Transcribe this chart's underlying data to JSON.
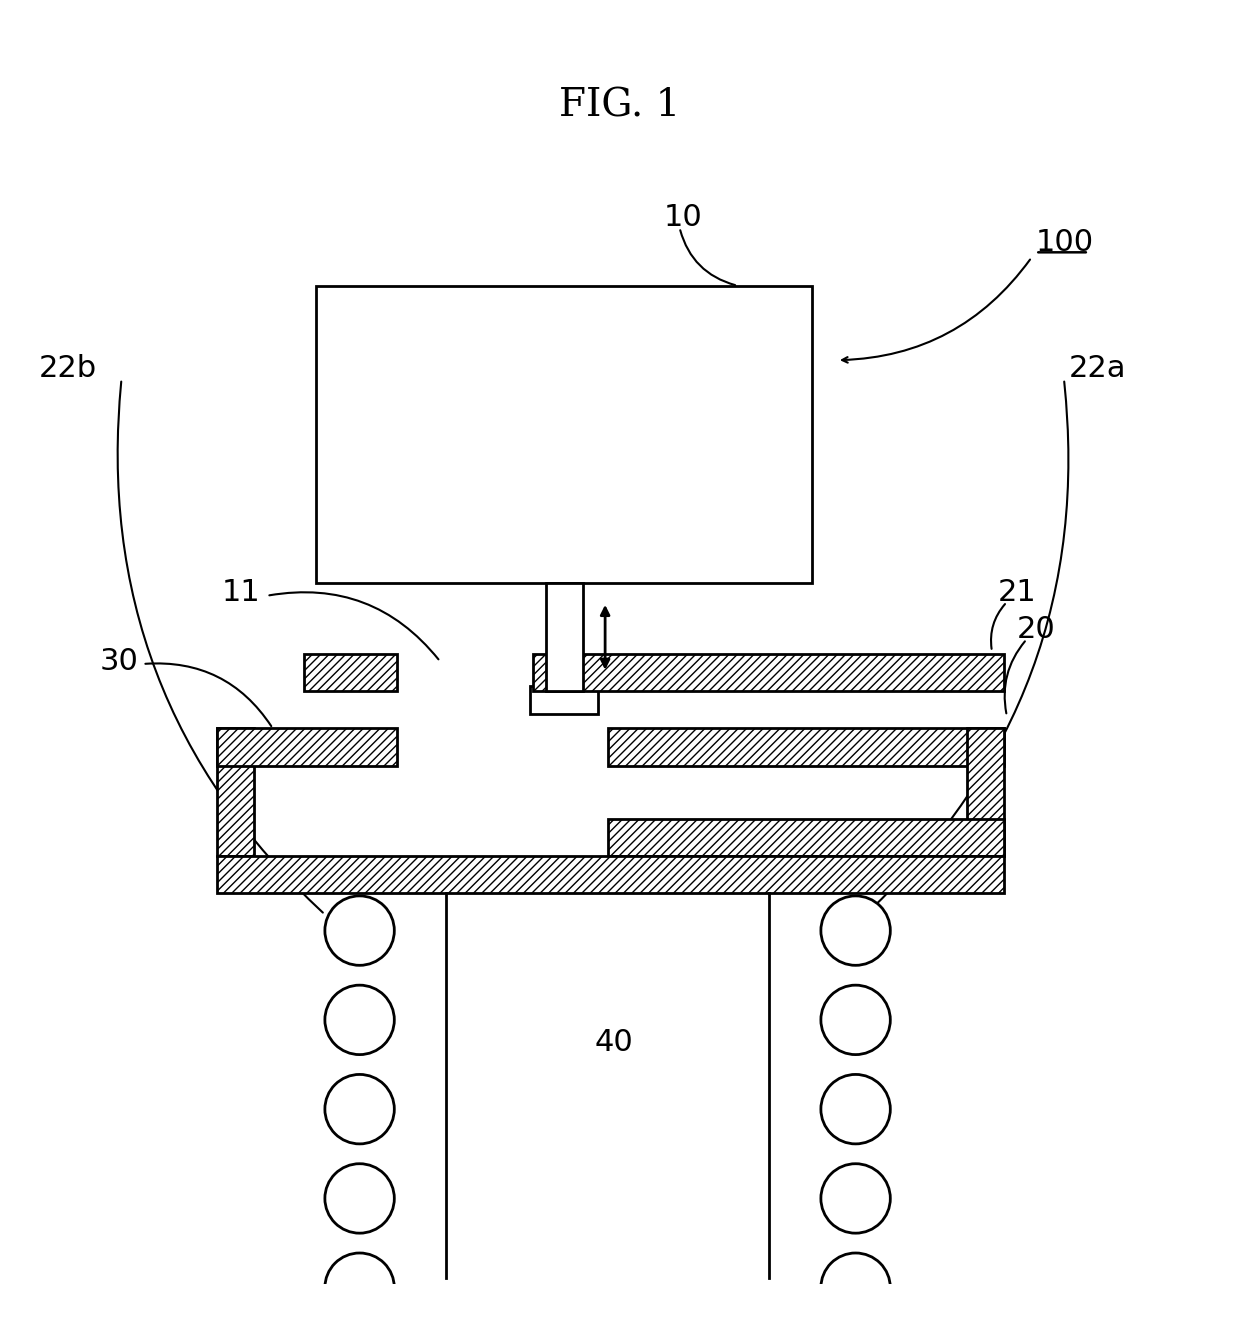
{
  "title": "FIG. 1",
  "title_fontsize": 28,
  "bg_color": "#ffffff",
  "line_color": "#000000",
  "label_fontsize": 22
}
